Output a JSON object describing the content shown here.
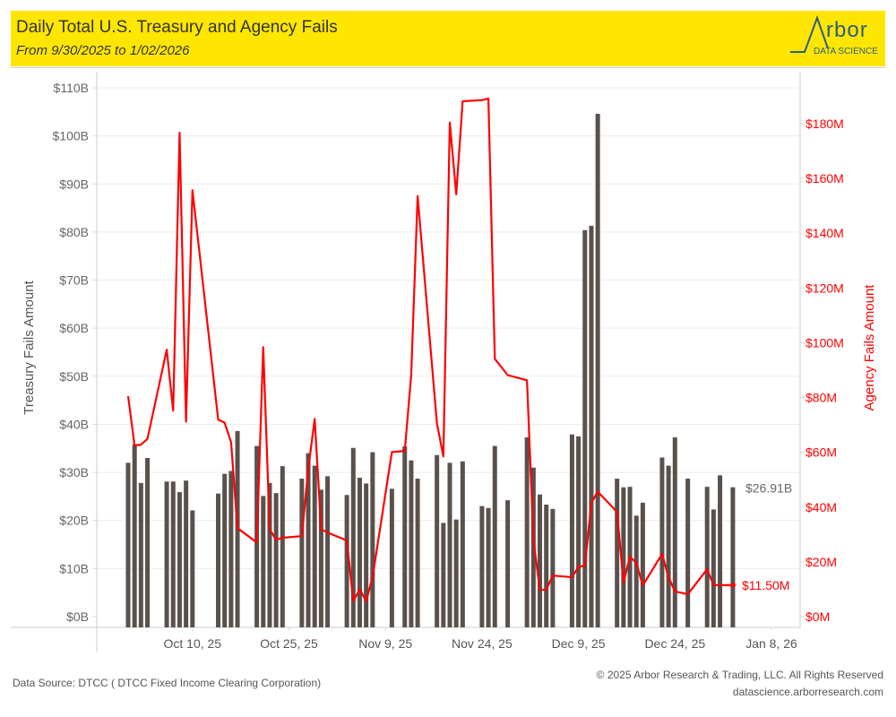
{
  "header": {
    "title": "Daily Total U.S. Treasury and Agency Fails",
    "subtitle": "From 9/30/2025 to 1/02/2026",
    "logo_word": "rbor",
    "logo_sub": "DATA SCIENCE"
  },
  "footer": {
    "source": "Data Source: DTCC ( DTCC Fixed Income Clearing Corporation)",
    "copyright": "© 2025 Arbor Research & Trading, LLC. All Rights Reserved",
    "website": "datascience.arborresearch.com"
  },
  "colors": {
    "bar": "#5a514d",
    "line": "#ff0000",
    "left_axis_text": "#666666",
    "right_axis_text": "#ff0000",
    "header_bg": "#ffe600"
  },
  "chart_data": {
    "type": "bar+line",
    "title": "Daily Total U.S. Treasury and Agency Fails",
    "subtitle": "From 9/30/2025 to 1/02/2026",
    "x_start": "2025-09-30",
    "x_range_days": [
      -4,
      101
    ],
    "x_ticks": [
      {
        "label": "Oct 10, 25",
        "day": 10
      },
      {
        "label": "Oct 25, 25",
        "day": 25
      },
      {
        "label": "Nov 9, 25",
        "day": 40
      },
      {
        "label": "Nov 24, 25",
        "day": 55
      },
      {
        "label": "Dec 9, 25",
        "day": 70
      },
      {
        "label": "Dec 24, 25",
        "day": 85
      },
      {
        "label": "Jan 8, 26",
        "day": 100
      }
    ],
    "left_axis": {
      "label": "Treasury Fails Amount",
      "ylim": [
        0,
        110
      ],
      "ticks": [
        0,
        10,
        20,
        30,
        40,
        50,
        60,
        70,
        80,
        90,
        100,
        110
      ],
      "tick_labels": [
        "$0B",
        "$10B",
        "$20B",
        "$30B",
        "$40B",
        "$50B",
        "$60B",
        "$70B",
        "$80B",
        "$90B",
        "$100B",
        "$110B"
      ]
    },
    "right_axis": {
      "label": "Agency Fails Amount",
      "ylim": [
        0,
        180
      ],
      "ticks": [
        0,
        20,
        40,
        60,
        80,
        100,
        120,
        140,
        160,
        180
      ],
      "tick_labels": [
        "$0M",
        "$20M",
        "$40M",
        "$60M",
        "$80M",
        "$100M",
        "$120M",
        "$140M",
        "$160M",
        "$180M"
      ]
    },
    "grid": true,
    "series": [
      {
        "name": "Treasury Fails ($B)",
        "type": "bar",
        "axis": "left",
        "days": [
          0,
          1,
          2,
          3,
          6,
          7,
          8,
          9,
          10,
          14,
          15,
          16,
          17,
          20,
          21,
          22,
          23,
          24,
          27,
          28,
          29,
          30,
          31,
          34,
          35,
          36,
          37,
          38,
          41,
          43,
          44,
          45,
          48,
          49,
          50,
          51,
          52,
          55,
          56,
          57,
          59,
          62,
          63,
          64,
          65,
          66,
          69,
          70,
          71,
          72,
          73,
          76,
          77,
          78,
          79,
          80,
          83,
          84,
          85,
          87,
          90,
          91,
          92,
          94
        ],
        "values": [
          32.0,
          35.8,
          27.8,
          33.0,
          28.1,
          28.1,
          25.9,
          28.3,
          22.1,
          25.6,
          29.7,
          30.3,
          38.6,
          35.5,
          25.1,
          27.8,
          25.7,
          31.3,
          28.7,
          34.0,
          31.4,
          26.4,
          29.2,
          25.3,
          35.1,
          28.9,
          27.7,
          34.2,
          26.6,
          35.4,
          32.5,
          28.7,
          33.6,
          19.5,
          32.0,
          20.2,
          32.3,
          23.0,
          22.6,
          35.5,
          24.2,
          37.3,
          31.0,
          25.4,
          23.3,
          22.4,
          37.9,
          37.5,
          80.4,
          81.3,
          104.6,
          28.7,
          26.9,
          27.0,
          21.0,
          23.7,
          33.1,
          31.4,
          37.3,
          28.7,
          27.0,
          22.3,
          29.4,
          26.91
        ]
      },
      {
        "name": "Agency Fails ($M)",
        "type": "line",
        "axis": "right",
        "days": [
          0,
          1,
          2,
          3,
          6,
          7,
          8,
          9,
          10,
          14,
          15,
          16,
          17,
          20,
          21,
          22,
          23,
          24,
          27,
          28,
          29,
          30,
          31,
          34,
          35,
          36,
          37,
          38,
          41,
          43,
          44,
          45,
          48,
          49,
          50,
          51,
          52,
          55,
          56,
          57,
          59,
          62,
          63,
          64,
          65,
          66,
          69,
          70,
          71,
          72,
          73,
          76,
          77,
          78,
          79,
          80,
          83,
          84,
          85,
          87,
          90,
          91,
          92,
          94
        ],
        "values": [
          80.5,
          62.5,
          62.8,
          64.9,
          97.5,
          75.2,
          176.7,
          71.2,
          155.7,
          71.9,
          70.8,
          63.7,
          32.3,
          27.1,
          98.4,
          31.9,
          28.1,
          28.8,
          29.4,
          53.9,
          72.2,
          31.9,
          30.7,
          27.8,
          5.6,
          10.0,
          5.6,
          14.5,
          60.1,
          60.5,
          88.2,
          153.6,
          70.6,
          58.5,
          180.4,
          154.2,
          188.2,
          188.6,
          189.2,
          94.1,
          88.2,
          86.3,
          28.1,
          9.8,
          9.8,
          15.0,
          14.4,
          18.2,
          18.6,
          41.5,
          45.6,
          38.2,
          12.4,
          21.9,
          19.6,
          11.4,
          22.9,
          14.4,
          9.2,
          8.2,
          17.3,
          11.5,
          11.5,
          11.5
        ]
      }
    ],
    "annotations": [
      {
        "text": "$26.91B",
        "series": "Treasury Fails ($B)",
        "day": 94,
        "value": 26.91
      },
      {
        "text": "$11.50M",
        "series": "Agency Fails ($M)",
        "day": 94,
        "value": 11.5
      }
    ]
  }
}
